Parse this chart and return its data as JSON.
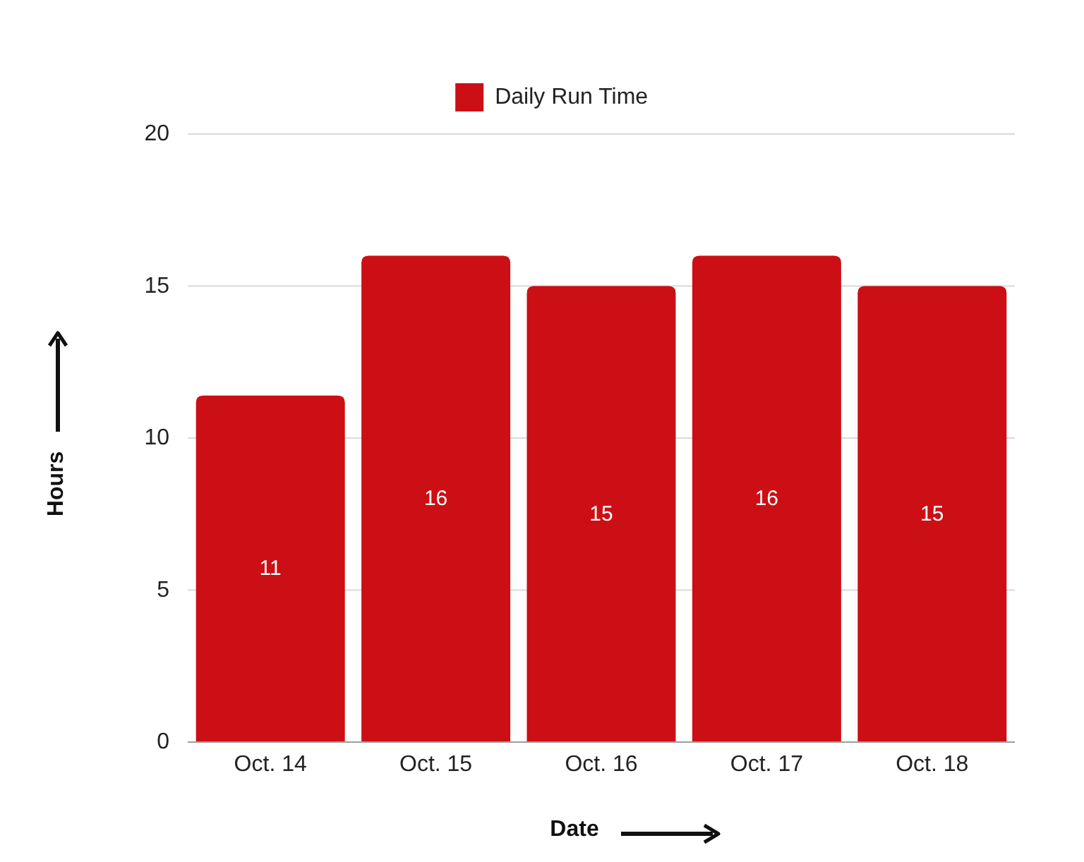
{
  "chart_data": {
    "type": "bar",
    "categories": [
      "Oct. 14",
      "Oct. 15",
      "Oct. 16",
      "Oct. 17",
      "Oct. 18"
    ],
    "series": [
      {
        "name": "Daily Run Time",
        "color": "#cc0f14",
        "values": [
          11.4,
          16,
          15,
          16,
          15
        ],
        "value_labels": [
          "11",
          "16",
          "15",
          "16",
          "15"
        ]
      }
    ],
    "xlabel": "Date",
    "ylabel": "Hours",
    "ylim": [
      0,
      20
    ],
    "yticks": [
      0,
      5,
      10,
      15,
      20
    ],
    "grid": "y",
    "legend": "top"
  }
}
